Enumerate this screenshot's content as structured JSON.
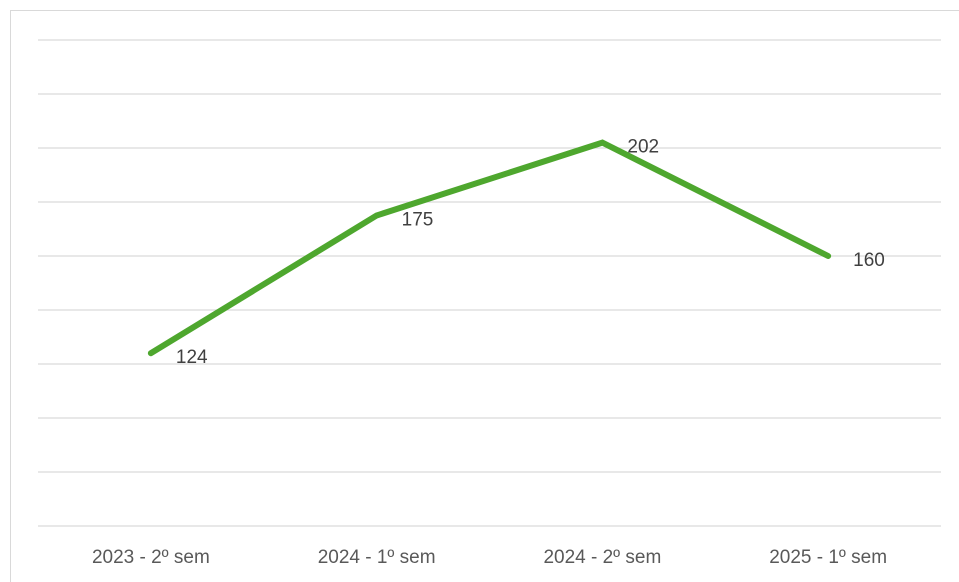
{
  "chart_data": {
    "type": "line",
    "categories": [
      "2023 - 2º sem",
      "2024 - 1º sem",
      "2024 - 2º sem",
      "2025 - 1º sem"
    ],
    "series": [
      {
        "values": [
          124,
          175,
          202,
          160
        ],
        "color": "#4ea72e"
      }
    ],
    "ylim": [
      60,
      240
    ],
    "y_grid_step": 20,
    "grid": true,
    "legend": "none",
    "data_labels": true
  }
}
